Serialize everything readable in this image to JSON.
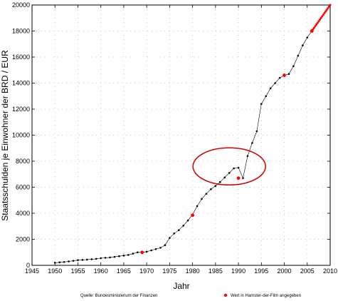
{
  "chart_data": {
    "type": "line",
    "title": "",
    "xlabel": "Jahr",
    "ylabel": "Staatsschulden je Einwohner der BRD / EUR",
    "xlim": [
      1945,
      2010
    ],
    "ylim": [
      0,
      20000
    ],
    "x_ticks": [
      "1945",
      "1950",
      "1955",
      "1960",
      "1965",
      "1970",
      "1975",
      "1980",
      "1985",
      "1990",
      "1995",
      "2000",
      "2005",
      "2010"
    ],
    "y_ticks": [
      "0",
      "2000",
      "4000",
      "6000",
      "8000",
      "10000",
      "12000",
      "14000",
      "16000",
      "18000",
      "20000"
    ],
    "grid": true,
    "series": [
      {
        "color": "#000000",
        "x": [
          1950,
          1951,
          1952,
          1953,
          1954,
          1955,
          1956,
          1957,
          1958,
          1959,
          1960,
          1961,
          1962,
          1963,
          1964,
          1965,
          1966,
          1967,
          1968,
          1969,
          1970,
          1971,
          1972,
          1973,
          1974,
          1975,
          1976,
          1977,
          1978,
          1979,
          1980,
          1981,
          1982,
          1983,
          1984,
          1985,
          1986,
          1987,
          1988,
          1989,
          1990,
          1991,
          1992,
          1993,
          1994,
          1995,
          1996,
          1997,
          1998,
          1999,
          2000,
          2001,
          2002,
          2003,
          2004,
          2005,
          2006,
          2007,
          2008,
          2009,
          2010
        ],
        "values": [
          200,
          230,
          260,
          300,
          350,
          400,
          420,
          440,
          470,
          500,
          550,
          580,
          610,
          650,
          700,
          750,
          800,
          900,
          1000,
          1000,
          1050,
          1150,
          1250,
          1350,
          1550,
          2100,
          2450,
          2700,
          3050,
          3450,
          3900,
          4550,
          5100,
          5500,
          5850,
          6100,
          6400,
          6750,
          7100,
          7450,
          7500,
          6700,
          8400,
          9400,
          10300,
          12400,
          13000,
          13600,
          14000,
          14400,
          14600,
          14700,
          15300,
          16100,
          16900,
          17500,
          18000,
          18500,
          19000,
          19500,
          20000
        ]
      }
    ],
    "highlighted_points": {
      "color": "#ff0000",
      "x": [
        1969,
        1980,
        1990,
        2000,
        2006
      ],
      "values": [
        1000,
        3850,
        6700,
        14600,
        18000
      ]
    },
    "annotation": {
      "shape": "ellipse",
      "color": "#cc0000",
      "x_center": 1988,
      "y_center": 7600
    },
    "legend": {
      "source": "Quelle: Bundesministerium der Finanzen",
      "marker_label": "Wert in Hamster-der-Film angegeben",
      "placement": "bottom"
    }
  }
}
